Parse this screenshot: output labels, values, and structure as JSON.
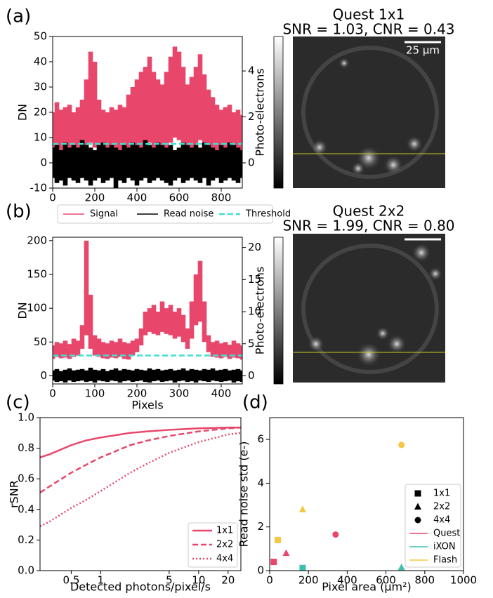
{
  "chart_data": [
    {
      "type": "line",
      "label": "(a)",
      "title": "Quest 1x1",
      "subtitle": "SNR = 1.03, CNR = 0.43",
      "scalebar": "25 µm",
      "ylabel": "DN",
      "y2label": "Photo-electrons",
      "xlim": [
        0,
        900
      ],
      "xticks": [
        0,
        200,
        400,
        600,
        800
      ],
      "ylim": [
        -10,
        50
      ],
      "yticks": [
        -10,
        0,
        10,
        20,
        30,
        40,
        50
      ],
      "y2lim": [
        -1.1,
        5.5
      ],
      "y2ticks": [
        0,
        2,
        4
      ],
      "x": [
        0,
        20,
        40,
        60,
        80,
        100,
        120,
        140,
        160,
        180,
        200,
        220,
        240,
        260,
        280,
        300,
        320,
        340,
        360,
        380,
        400,
        420,
        440,
        460,
        480,
        500,
        520,
        540,
        560,
        580,
        600,
        620,
        640,
        660,
        680,
        700,
        720,
        740,
        760,
        780,
        800,
        820,
        840,
        860,
        880,
        900
      ],
      "series": [
        {
          "name": "Signal",
          "color": "#e8476b",
          "values": [
            20,
            24,
            21,
            22,
            23,
            20,
            22,
            25,
            33,
            44,
            40,
            25,
            21,
            20,
            22,
            21,
            23,
            22,
            27,
            30,
            33,
            36,
            38,
            42,
            36,
            33,
            31,
            36,
            42,
            46,
            44,
            38,
            31,
            34,
            38,
            43,
            35,
            29,
            26,
            23,
            21,
            22,
            23,
            20,
            21,
            19
          ],
          "low": [
            1,
            0,
            2,
            1,
            0,
            1,
            2,
            1,
            3,
            8,
            6,
            2,
            1,
            0,
            1,
            2,
            1,
            0,
            2,
            3,
            4,
            5,
            6,
            8,
            5,
            4,
            3,
            5,
            8,
            10,
            9,
            6,
            4,
            5,
            6,
            9,
            5,
            3,
            2,
            1,
            0,
            1,
            2,
            1,
            0,
            1
          ]
        },
        {
          "name": "Read noise",
          "color": "#000000",
          "values": [
            6,
            7,
            5,
            8,
            6,
            7,
            6,
            9,
            7,
            6,
            5,
            7,
            8,
            6,
            7,
            6,
            5,
            7,
            6,
            8,
            7,
            6,
            9,
            7,
            6,
            8,
            7,
            6,
            7,
            5,
            6,
            8,
            7,
            6,
            7,
            6,
            8,
            7,
            6,
            5,
            7,
            6,
            8,
            7,
            6,
            5
          ],
          "low": [
            -6,
            -8,
            -7,
            -9,
            -6,
            -7,
            -8,
            -6,
            -7,
            -9,
            -7,
            -6,
            -8,
            -7,
            -6,
            -10,
            -7,
            -8,
            -6,
            -7,
            -9,
            -7,
            -6,
            -8,
            -7,
            -6,
            -7,
            -8,
            -9,
            -7,
            -6,
            -8,
            -7,
            -6,
            -7,
            -8,
            -6,
            -9,
            -7,
            -6,
            -8,
            -7,
            -6,
            -7,
            -8,
            -6
          ]
        },
        {
          "name": "Threshold",
          "color": "#40e0d0",
          "style": "dashed",
          "hline": 7.5
        }
      ]
    },
    {
      "type": "line",
      "label": "(b)",
      "title": "Quest 2x2",
      "subtitle": "SNR = 1.99, CNR = 0.80",
      "xlabel": "Pixels",
      "ylabel": "DN",
      "y2label": "Photo-electrons",
      "xlim": [
        0,
        450
      ],
      "xticks": [
        0,
        100,
        200,
        300,
        400
      ],
      "ylim": [
        -12,
        205
      ],
      "yticks": [
        0,
        50,
        100,
        150,
        200
      ],
      "y2lim": [
        -1.26,
        21.6
      ],
      "y2ticks": [
        0,
        5,
        10,
        15,
        20
      ],
      "x": [
        0,
        10,
        20,
        30,
        40,
        50,
        60,
        70,
        80,
        90,
        100,
        110,
        120,
        130,
        140,
        150,
        160,
        170,
        180,
        190,
        200,
        210,
        220,
        230,
        240,
        250,
        260,
        270,
        280,
        290,
        300,
        310,
        320,
        330,
        340,
        350,
        360,
        370,
        380,
        390,
        400,
        410,
        420,
        430,
        440,
        450
      ],
      "series": [
        {
          "color": "#e8476b",
          "values": [
            45,
            50,
            48,
            52,
            47,
            55,
            52,
            75,
            200,
            120,
            60,
            55,
            50,
            48,
            52,
            50,
            55,
            50,
            48,
            52,
            55,
            70,
            95,
            100,
            105,
            95,
            110,
            100,
            105,
            95,
            100,
            90,
            70,
            110,
            150,
            170,
            110,
            60,
            50,
            52,
            48,
            50,
            46,
            52,
            48,
            45
          ],
          "low": [
            25,
            28,
            26,
            27,
            25,
            28,
            30,
            40,
            60,
            40,
            30,
            28,
            26,
            25,
            27,
            26,
            28,
            25,
            24,
            30,
            35,
            45,
            60,
            65,
            62,
            60,
            65,
            62,
            60,
            55,
            58,
            50,
            40,
            55,
            75,
            80,
            50,
            35,
            28,
            27,
            26,
            28,
            25,
            27,
            26,
            24
          ]
        },
        {
          "color": "#000000",
          "values": [
            8,
            10,
            7,
            9,
            11,
            8,
            9,
            10,
            8,
            12,
            9,
            8,
            10,
            7,
            9,
            11,
            8,
            10,
            9,
            8,
            10,
            9,
            8,
            11,
            9,
            10,
            8,
            9,
            10,
            8,
            9,
            11,
            8,
            10,
            9,
            8,
            10,
            9,
            11,
            8,
            9,
            10,
            8,
            9,
            10,
            8
          ],
          "low": [
            -7,
            -9,
            -8,
            -10,
            -7,
            -9,
            -8,
            -7,
            -9,
            -8,
            -10,
            -7,
            -8,
            -9,
            -7,
            -8,
            -10,
            -8,
            -7,
            -9,
            -8,
            -7,
            -9,
            -10,
            -8,
            -7,
            -9,
            -8,
            -7,
            -10,
            -8,
            -7,
            -9,
            -8,
            -10,
            -7,
            -8,
            -9,
            -7,
            -8,
            -9,
            -8,
            -7,
            -10,
            -8,
            -9
          ]
        },
        {
          "color": "#40e0d0",
          "style": "dashed",
          "hline": 30
        }
      ]
    },
    {
      "type": "line",
      "label": "(c)",
      "xlabel": "Detected photons/pixel/s",
      "ylabel": "rSNR",
      "xscale": "log",
      "xlim": [
        0.24,
        27
      ],
      "xticks": [
        0.5,
        1,
        5,
        10,
        20
      ],
      "ylim": [
        0,
        1
      ],
      "yticks": [
        {
          "value": 0,
          "label": "0.0"
        },
        0.2,
        0.4,
        0.6,
        0.8,
        {
          "value": 1,
          "label": "1.0"
        }
      ],
      "x": [
        0.24,
        0.3,
        0.5,
        0.7,
        1,
        2,
        3,
        5,
        10,
        20,
        27
      ],
      "series": [
        {
          "name": "1x1",
          "color": "#e8476b",
          "style": "solid",
          "values": [
            0.74,
            0.76,
            0.82,
            0.85,
            0.87,
            0.9,
            0.91,
            0.92,
            0.93,
            0.935,
            0.935
          ]
        },
        {
          "name": "2x2",
          "color": "#e8476b",
          "style": "dashed",
          "values": [
            0.51,
            0.55,
            0.64,
            0.69,
            0.74,
            0.82,
            0.85,
            0.88,
            0.91,
            0.93,
            0.935
          ]
        },
        {
          "name": "4x4",
          "color": "#e8476b",
          "style": "dotted",
          "values": [
            0.29,
            0.32,
            0.41,
            0.46,
            0.52,
            0.64,
            0.7,
            0.77,
            0.84,
            0.89,
            0.9
          ]
        }
      ]
    },
    {
      "type": "scatter",
      "label": "(d)",
      "xlabel": "Pixel area (µm²)",
      "ylabel": "Read noise std (e-)",
      "xlim": [
        0,
        1000
      ],
      "xticks": [
        0,
        200,
        400,
        600,
        800,
        1000
      ],
      "ylim": [
        0,
        7
      ],
      "yticks": [
        0,
        2,
        4,
        6
      ],
      "marker_legend": [
        {
          "name": "1x1",
          "marker": "square"
        },
        {
          "name": "2x2",
          "marker": "triangle"
        },
        {
          "name": "4x4",
          "marker": "circle"
        }
      ],
      "series": [
        {
          "name": "Quest",
          "color": "#e8476b",
          "x": [
            21,
            85,
            340
          ],
          "values": [
            0.4,
            0.8,
            1.65
          ],
          "markers": [
            "square",
            "triangle",
            "circle"
          ]
        },
        {
          "name": "iXON",
          "color": "#3cc0ad",
          "x": [
            170,
            680
          ],
          "values": [
            0.12,
            0.15
          ],
          "markers": [
            "square",
            "triangle"
          ]
        },
        {
          "name": "Flash",
          "color": "#f6c744",
          "x": [
            42,
            170,
            680
          ],
          "values": [
            1.4,
            2.8,
            5.75
          ],
          "markers": [
            "square",
            "triangle",
            "circle"
          ]
        }
      ]
    }
  ]
}
